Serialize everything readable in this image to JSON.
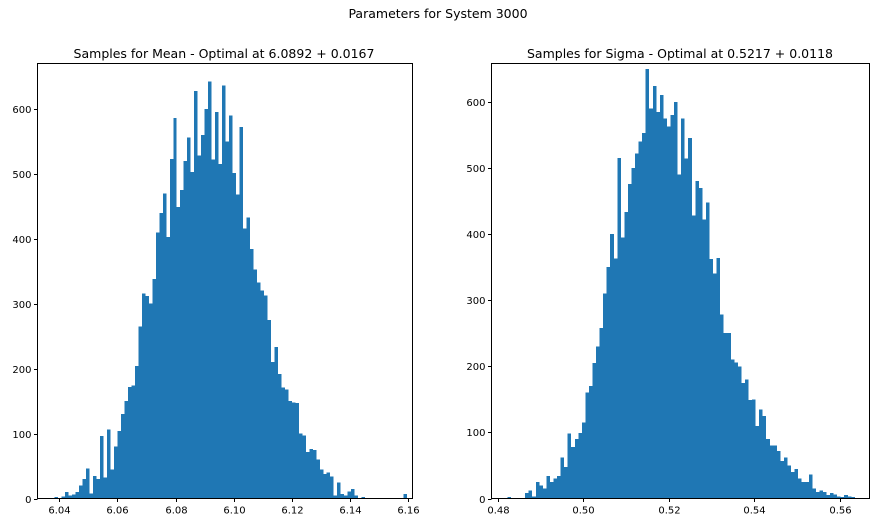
{
  "figure": {
    "suptitle": "Parameters for System 3000"
  },
  "chart_data": [
    {
      "type": "bar",
      "title": "Samples for Mean - Optimal at 6.0892 + 0.0167",
      "xlabel": "",
      "ylabel": "",
      "xlim": [
        6.0325,
        6.1615
      ],
      "ylim": [
        0,
        670
      ],
      "xticks": [
        6.04,
        6.06,
        6.08,
        6.1,
        6.12,
        6.14,
        6.16
      ],
      "xtick_labels": [
        "6.04",
        "6.06",
        "6.08",
        "6.10",
        "6.12",
        "6.14",
        "6.16"
      ],
      "yticks": [
        0,
        100,
        200,
        300,
        400,
        500,
        600
      ],
      "ytick_labels": [
        "0",
        "100",
        "200",
        "300",
        "400",
        "500",
        "600"
      ],
      "color": "#1f77b4",
      "bin_start": 6.0384,
      "bin_width": 0.0012,
      "values": [
        2,
        0,
        3,
        10,
        5,
        6,
        10,
        20,
        30,
        46,
        8,
        35,
        30,
        96,
        32,
        106,
        45,
        80,
        104,
        130,
        150,
        172,
        174,
        204,
        265,
        316,
        312,
        300,
        338,
        410,
        440,
        470,
        403,
        523,
        586,
        449,
        475,
        520,
        556,
        503,
        628,
        528,
        560,
        600,
        642,
        522,
        595,
        515,
        636,
        550,
        590,
        501,
        468,
        572,
        416,
        433,
        384,
        353,
        333,
        320,
        313,
        275,
        210,
        233,
        192,
        171,
        168,
        150,
        148,
        147,
        100,
        97,
        72,
        76,
        75,
        60,
        45,
        38,
        40,
        34,
        5,
        25,
        7,
        5,
        11,
        15,
        5,
        1,
        2,
        0,
        0,
        1,
        0,
        0,
        0,
        0,
        0,
        0,
        0,
        0,
        7
      ]
    },
    {
      "type": "bar",
      "title": "Samples for Sigma - Optimal at 0.5217 + 0.0118",
      "xlabel": "",
      "ylabel": "",
      "xlim": [
        0.4785,
        0.567
      ],
      "ylim": [
        0,
        658
      ],
      "xticks": [
        0.48,
        0.5,
        0.52,
        0.54,
        0.56
      ],
      "xtick_labels": [
        "0.48",
        "0.50",
        "0.52",
        "0.54",
        "0.56"
      ],
      "yticks": [
        0,
        100,
        200,
        300,
        400,
        500,
        600
      ],
      "ytick_labels": [
        "0",
        "100",
        "200",
        "300",
        "400",
        "500",
        "600"
      ],
      "color": "#1f77b4",
      "bin_start": 0.4814,
      "bin_width": 0.00083,
      "values": [
        0,
        2,
        0,
        0,
        0,
        0,
        8,
        12,
        3,
        25,
        20,
        15,
        34,
        25,
        30,
        34,
        62,
        48,
        98,
        78,
        90,
        99,
        115,
        160,
        170,
        205,
        230,
        258,
        310,
        350,
        400,
        363,
        515,
        395,
        433,
        476,
        500,
        522,
        540,
        553,
        650,
        590,
        624,
        585,
        610,
        575,
        563,
        580,
        600,
        490,
        575,
        514,
        545,
        428,
        480,
        470,
        422,
        448,
        362,
        340,
        364,
        278,
        250,
        250,
        210,
        206,
        200,
        175,
        180,
        149,
        150,
        110,
        135,
        125,
        90,
        80,
        80,
        72,
        57,
        62,
        50,
        40,
        45,
        30,
        25,
        25,
        36,
        15,
        10,
        12,
        10,
        5,
        8,
        6,
        3,
        2,
        5,
        3,
        2,
        1
      ]
    }
  ]
}
